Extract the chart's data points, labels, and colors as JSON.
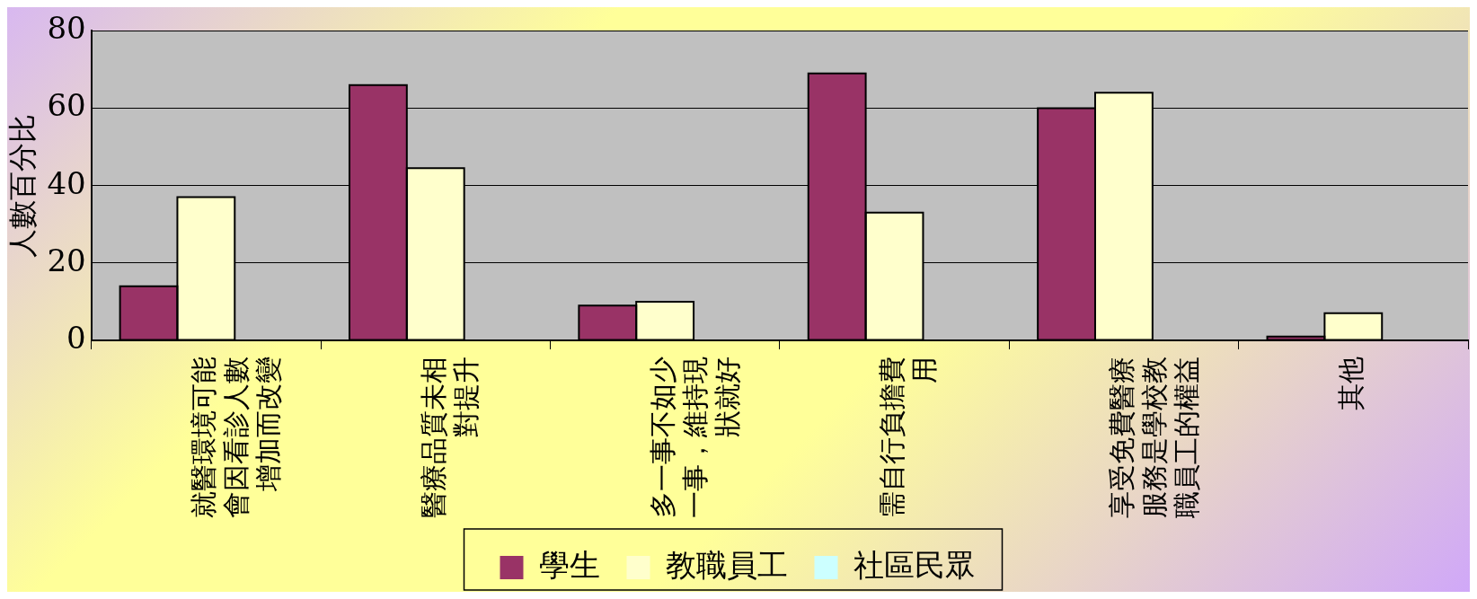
{
  "chart_data": {
    "type": "bar",
    "ylabel": "人數百分比",
    "categories": [
      "就醫環境可能會因看診人數增加而改變",
      "醫療品質未相對提升",
      "多一事不如少一事，維持現狀就好",
      "需自行負擔費用",
      "享受免費醫療服務是學校教職員工的權益",
      "其他"
    ],
    "series": [
      {
        "name": "學生",
        "color": "#993366",
        "values": [
          14,
          66,
          9,
          69,
          60,
          1
        ]
      },
      {
        "name": "教職員工",
        "color": "#ffffcc",
        "values": [
          37,
          44.5,
          10,
          33,
          64,
          7
        ]
      },
      {
        "name": "社區民眾",
        "color": "#ccffff",
        "values": [
          null,
          null,
          null,
          null,
          null,
          null
        ]
      }
    ],
    "ylim": [
      0,
      80
    ],
    "yticks": [
      0,
      20,
      40,
      60,
      80
    ],
    "grid": "y",
    "legend": "bottom"
  }
}
